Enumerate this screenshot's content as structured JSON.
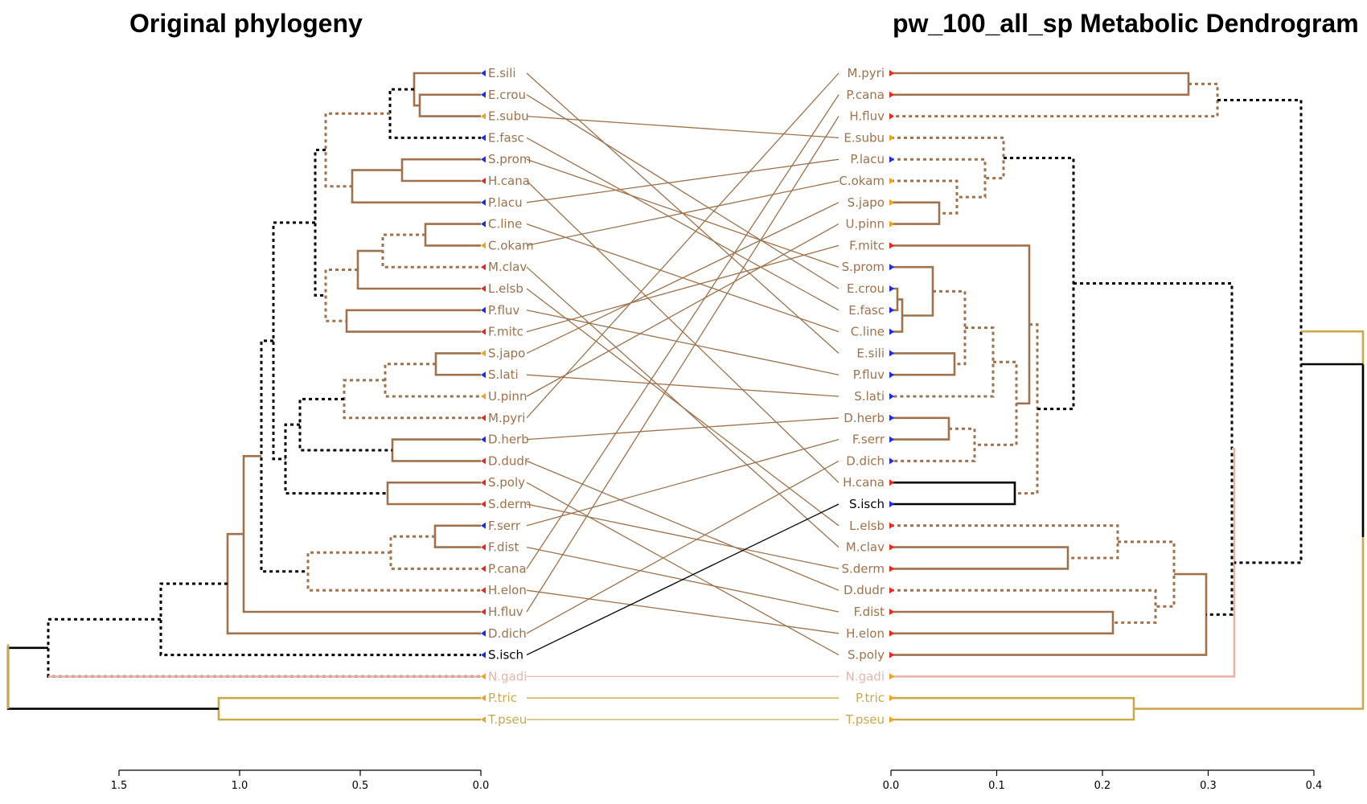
{
  "titles": {
    "left": "Original phylogeny",
    "right": "pw_100_all_sp Metabolic Dendrogram"
  },
  "colors": {
    "brown": "#a0714a",
    "black": "#000000",
    "pink": "#e8b4a8",
    "gold": "#c9a94a",
    "tip_red": "#e8291e",
    "tip_blue": "#1a2de0",
    "tip_orange": "#f0a21a"
  },
  "left_tree": {
    "axis_ticks": [
      "1.5",
      "1.0",
      "0.5",
      "0.0"
    ],
    "leaves": [
      {
        "label": "E.sili",
        "tip": "blue"
      },
      {
        "label": "E.crou",
        "tip": "blue"
      },
      {
        "label": "E.subu",
        "tip": "orange"
      },
      {
        "label": "E.fasc",
        "tip": "blue"
      },
      {
        "label": "S.prom",
        "tip": "blue"
      },
      {
        "label": "H.cana",
        "tip": "red"
      },
      {
        "label": "P.lacu",
        "tip": "blue"
      },
      {
        "label": "C.line",
        "tip": "blue"
      },
      {
        "label": "C.okam",
        "tip": "orange"
      },
      {
        "label": "M.clav",
        "tip": "red"
      },
      {
        "label": "L.elsb",
        "tip": "red"
      },
      {
        "label": "P.fluv",
        "tip": "blue"
      },
      {
        "label": "F.mitc",
        "tip": "red"
      },
      {
        "label": "S.japo",
        "tip": "orange"
      },
      {
        "label": "S.lati",
        "tip": "blue"
      },
      {
        "label": "U.pinn",
        "tip": "orange"
      },
      {
        "label": "M.pyri",
        "tip": "red"
      },
      {
        "label": "D.herb",
        "tip": "blue"
      },
      {
        "label": "D.dudr",
        "tip": "red"
      },
      {
        "label": "S.poly",
        "tip": "red"
      },
      {
        "label": "S.derm",
        "tip": "red"
      },
      {
        "label": "F.serr",
        "tip": "blue"
      },
      {
        "label": "F.dist",
        "tip": "red"
      },
      {
        "label": "P.cana",
        "tip": "red"
      },
      {
        "label": "H.elon",
        "tip": "red"
      },
      {
        "label": "H.fluv",
        "tip": "red"
      },
      {
        "label": "D.dich",
        "tip": "blue"
      },
      {
        "label": "S.isch",
        "tip": "blue"
      },
      {
        "label": "N.gadi",
        "tip": "orange"
      },
      {
        "label": "P.tric",
        "tip": "orange"
      },
      {
        "label": "T.pseu",
        "tip": "orange"
      }
    ]
  },
  "right_tree": {
    "axis_ticks": [
      "0.0",
      "0.1",
      "0.2",
      "0.3",
      "0.4"
    ],
    "leaves": [
      {
        "label": "M.pyri",
        "tip": "red"
      },
      {
        "label": "P.cana",
        "tip": "red"
      },
      {
        "label": "H.fluv",
        "tip": "red"
      },
      {
        "label": "E.subu",
        "tip": "orange"
      },
      {
        "label": "P.lacu",
        "tip": "blue"
      },
      {
        "label": "C.okam",
        "tip": "orange"
      },
      {
        "label": "S.japo",
        "tip": "orange"
      },
      {
        "label": "U.pinn",
        "tip": "orange"
      },
      {
        "label": "F.mitc",
        "tip": "red"
      },
      {
        "label": "S.prom",
        "tip": "blue"
      },
      {
        "label": "E.crou",
        "tip": "blue"
      },
      {
        "label": "E.fasc",
        "tip": "blue"
      },
      {
        "label": "C.line",
        "tip": "blue"
      },
      {
        "label": "E.sili",
        "tip": "blue"
      },
      {
        "label": "P.fluv",
        "tip": "blue"
      },
      {
        "label": "S.lati",
        "tip": "blue"
      },
      {
        "label": "D.herb",
        "tip": "blue"
      },
      {
        "label": "F.serr",
        "tip": "blue"
      },
      {
        "label": "D.dich",
        "tip": "blue"
      },
      {
        "label": "H.cana",
        "tip": "red"
      },
      {
        "label": "S.isch",
        "tip": "blue"
      },
      {
        "label": "L.elsb",
        "tip": "red"
      },
      {
        "label": "M.clav",
        "tip": "red"
      },
      {
        "label": "S.derm",
        "tip": "red"
      },
      {
        "label": "D.dudr",
        "tip": "red"
      },
      {
        "label": "F.dist",
        "tip": "red"
      },
      {
        "label": "H.elon",
        "tip": "red"
      },
      {
        "label": "S.poly",
        "tip": "red"
      },
      {
        "label": "N.gadi",
        "tip": "orange"
      },
      {
        "label": "P.tric",
        "tip": "orange"
      },
      {
        "label": "T.pseu",
        "tip": "orange"
      }
    ]
  }
}
